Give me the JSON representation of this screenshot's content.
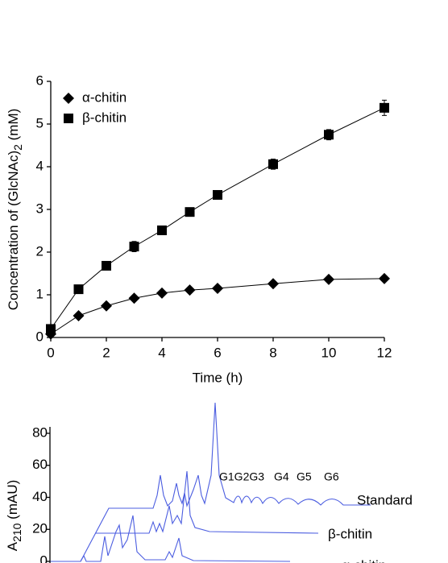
{
  "chart_data": [
    {
      "type": "line",
      "ylabel": [
        "Concentration of (GlcNAc)",
        "2",
        " (mM)"
      ],
      "xlabel": "Time (h)",
      "x": [
        0,
        1,
        2,
        3,
        4,
        5,
        6,
        8,
        10,
        12
      ],
      "xlim": [
        0,
        12
      ],
      "xticks": [
        0,
        2,
        4,
        6,
        8,
        10,
        12
      ],
      "ylim": [
        0,
        6
      ],
      "yticks": [
        0,
        1,
        2,
        3,
        4,
        5,
        6
      ],
      "legend": "upper left",
      "series": [
        {
          "name": "α-chitin",
          "marker": "diamond",
          "color": "#000000",
          "values": [
            0.08,
            0.51,
            0.74,
            0.92,
            1.04,
            1.11,
            1.15,
            1.26,
            1.36,
            1.38
          ],
          "errors": [
            0.02,
            0.03,
            0.04,
            0.05,
            0.04,
            0.03,
            0.03,
            0.03,
            0.04,
            0.03
          ]
        },
        {
          "name": "β-chitin",
          "marker": "square",
          "color": "#000000",
          "values": [
            0.2,
            1.13,
            1.68,
            2.13,
            2.51,
            2.94,
            3.34,
            4.06,
            4.75,
            5.38
          ],
          "errors": [
            0.05,
            0.05,
            0.07,
            0.12,
            0.06,
            0.06,
            0.06,
            0.12,
            0.12,
            0.18
          ]
        }
      ]
    },
    {
      "type": "chromatogram",
      "ylabel": [
        "A",
        "210",
        " (mAU)"
      ],
      "ylim": [
        0,
        80
      ],
      "yticks": [
        0,
        20,
        40,
        60,
        80
      ],
      "color": "#4b5de0",
      "peak_labels": [
        "G1G2G3",
        "G4",
        "G5",
        "G6"
      ],
      "trace_labels": [
        "Standard",
        "β-chitin",
        "α-chitin"
      ]
    }
  ]
}
